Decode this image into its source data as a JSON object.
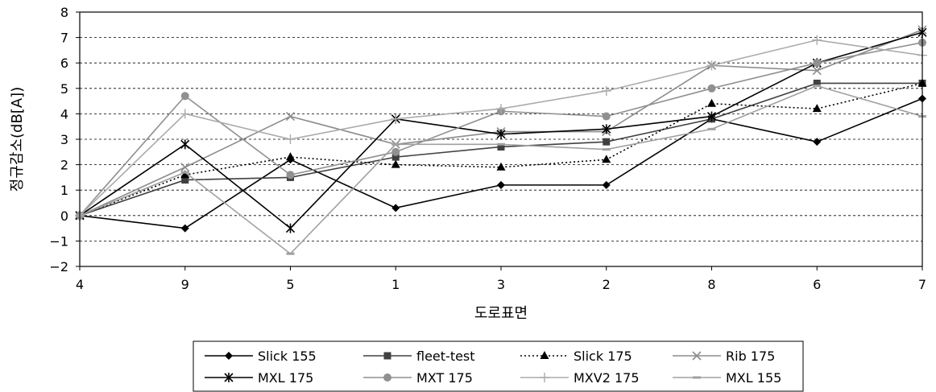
{
  "chart_data": {
    "type": "line",
    "title": "",
    "xlabel": "도로표면",
    "ylabel": "정규감소(dB[A])",
    "categories": [
      "4",
      "9",
      "5",
      "1",
      "3",
      "2",
      "8",
      "6",
      "7"
    ],
    "ylim": [
      -2,
      8
    ],
    "yticks": [
      -2,
      -1,
      0,
      1,
      2,
      3,
      4,
      5,
      6,
      7,
      8
    ],
    "grid": "horizontal-dashed",
    "legend_position": "bottom",
    "series": [
      {
        "name": "Slick 155",
        "color": "#000000",
        "dash": "solid",
        "marker": "diamond",
        "values": [
          0,
          -0.5,
          2.2,
          0.3,
          1.2,
          1.2,
          3.8,
          2.9,
          4.6
        ]
      },
      {
        "name": "fleet-test",
        "color": "#404040",
        "dash": "solid",
        "marker": "square",
        "values": [
          0,
          1.4,
          1.5,
          2.3,
          2.7,
          2.9,
          3.8,
          5.2,
          5.2
        ]
      },
      {
        "name": "Slick 175",
        "color": "#000000",
        "dash": "dotted",
        "marker": "triangle",
        "values": [
          0,
          1.6,
          2.3,
          2.0,
          1.9,
          2.2,
          4.4,
          4.2,
          5.2
        ]
      },
      {
        "name": "Rib 175",
        "color": "#8c8c8c",
        "dash": "solid",
        "marker": "x",
        "values": [
          0,
          1.9,
          3.9,
          2.8,
          3.3,
          3.3,
          5.9,
          5.7,
          7.3
        ]
      },
      {
        "name": "MXL 175",
        "color": "#000000",
        "dash": "solid",
        "marker": "star",
        "values": [
          0,
          2.8,
          -0.5,
          3.8,
          3.2,
          3.4,
          3.9,
          6.0,
          7.2
        ]
      },
      {
        "name": "MXT 175",
        "color": "#909090",
        "dash": "solid",
        "marker": "circle",
        "values": [
          0,
          4.7,
          1.6,
          2.5,
          4.1,
          3.9,
          5.0,
          6.0,
          6.8
        ]
      },
      {
        "name": "MXV2 175",
        "color": "#ababab",
        "dash": "solid",
        "marker": "plus",
        "values": [
          0,
          4.0,
          3.0,
          3.8,
          4.2,
          4.9,
          5.9,
          6.9,
          6.3
        ]
      },
      {
        "name": "MXL 155",
        "color": "#a0a0a0",
        "dash": "solid",
        "marker": "dash",
        "values": [
          0,
          1.7,
          -1.5,
          2.8,
          2.8,
          2.6,
          3.4,
          5.1,
          3.9
        ]
      }
    ]
  }
}
